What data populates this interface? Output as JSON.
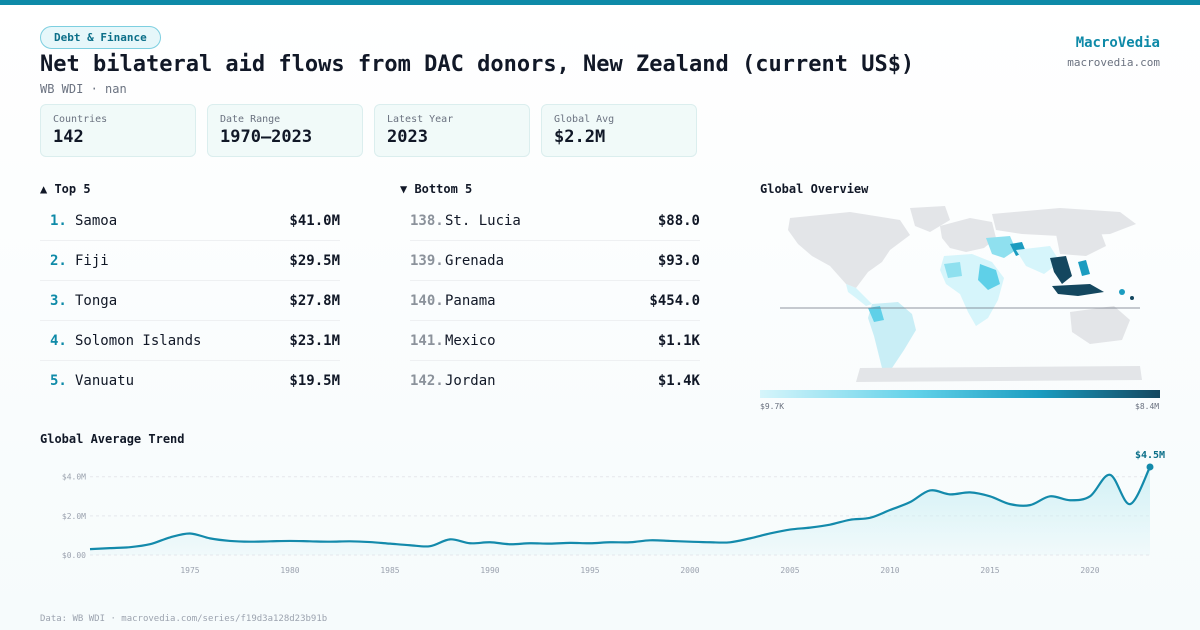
{
  "header": {
    "tag": "Debt & Finance",
    "title": "Net bilateral aid flows from DAC donors, New Zealand (current US$)",
    "subtitle": "WB WDI · nan",
    "brand_name": "MacroVedia",
    "brand_url": "macrovedia.com"
  },
  "stats": [
    {
      "label": "Countries",
      "value": "142"
    },
    {
      "label": "Date Range",
      "value": "1970–2023"
    },
    {
      "label": "Latest Year",
      "value": "2023"
    },
    {
      "label": "Global Avg",
      "value": "$2.2M"
    }
  ],
  "top5": {
    "title": "▲ Top 5",
    "items": [
      {
        "rank": "1.",
        "name": "Samoa",
        "value": "$41.0M"
      },
      {
        "rank": "2.",
        "name": "Fiji",
        "value": "$29.5M"
      },
      {
        "rank": "3.",
        "name": "Tonga",
        "value": "$27.8M"
      },
      {
        "rank": "4.",
        "name": "Solomon Islands",
        "value": "$23.1M"
      },
      {
        "rank": "5.",
        "name": "Vanuatu",
        "value": "$19.5M"
      }
    ]
  },
  "bottom5": {
    "title": "▼ Bottom 5",
    "items": [
      {
        "rank": "138.",
        "name": "St. Lucia",
        "value": "$88.0"
      },
      {
        "rank": "139.",
        "name": "Grenada",
        "value": "$93.0"
      },
      {
        "rank": "140.",
        "name": "Panama",
        "value": "$454.0"
      },
      {
        "rank": "141.",
        "name": "Mexico",
        "value": "$1.1K"
      },
      {
        "rank": "142.",
        "name": "Jordan",
        "value": "$1.4K"
      }
    ]
  },
  "map": {
    "title": "Global Overview",
    "legend_min": "$9.7K",
    "legend_max": "$8.4M",
    "colors": {
      "none": "#e3e5e8",
      "low": "#d6f5fb",
      "mid": "#5fd0e8",
      "high": "#1b9cc0",
      "max": "#14475f"
    }
  },
  "trend_title": "Global Average Trend",
  "footer": "Data: WB WDI · macrovedia.com/series/f19d3a128d23b91b",
  "colors": {
    "accent": "#0e8aa8",
    "line": "#138aab",
    "fill": "#cdeff4"
  },
  "chart_data": {
    "type": "area",
    "title": "Global Average Trend",
    "xlabel": "",
    "ylabel": "",
    "x": [
      1970,
      1971,
      1972,
      1973,
      1974,
      1975,
      1976,
      1977,
      1978,
      1979,
      1980,
      1981,
      1982,
      1983,
      1984,
      1985,
      1986,
      1987,
      1988,
      1989,
      1990,
      1991,
      1992,
      1993,
      1994,
      1995,
      1996,
      1997,
      1998,
      1999,
      2000,
      2001,
      2002,
      2003,
      2004,
      2005,
      2006,
      2007,
      2008,
      2009,
      2010,
      2011,
      2012,
      2013,
      2014,
      2015,
      2016,
      2017,
      2018,
      2019,
      2020,
      2021,
      2022,
      2023
    ],
    "values": [
      0.3,
      0.35,
      0.4,
      0.55,
      0.9,
      1.1,
      0.85,
      0.72,
      0.68,
      0.7,
      0.72,
      0.7,
      0.68,
      0.7,
      0.66,
      0.58,
      0.5,
      0.45,
      0.8,
      0.6,
      0.65,
      0.55,
      0.6,
      0.58,
      0.62,
      0.6,
      0.65,
      0.65,
      0.75,
      0.72,
      0.68,
      0.65,
      0.65,
      0.85,
      1.1,
      1.3,
      1.4,
      1.55,
      1.8,
      1.9,
      2.3,
      2.7,
      3.3,
      3.1,
      3.2,
      3.0,
      2.6,
      2.55,
      3.0,
      2.8,
      3.0,
      4.1,
      2.6,
      4.5
    ],
    "xticks": [
      1975,
      1980,
      1985,
      1990,
      1995,
      2000,
      2005,
      2010,
      2015,
      2020
    ],
    "yticks": [
      0,
      2,
      4
    ],
    "ytick_labels": [
      "$0.00",
      "$2.0M",
      "$4.0M"
    ],
    "ylim": [
      0,
      4.6
    ],
    "unit": "M",
    "last_label": "$4.5M",
    "grid": true
  }
}
